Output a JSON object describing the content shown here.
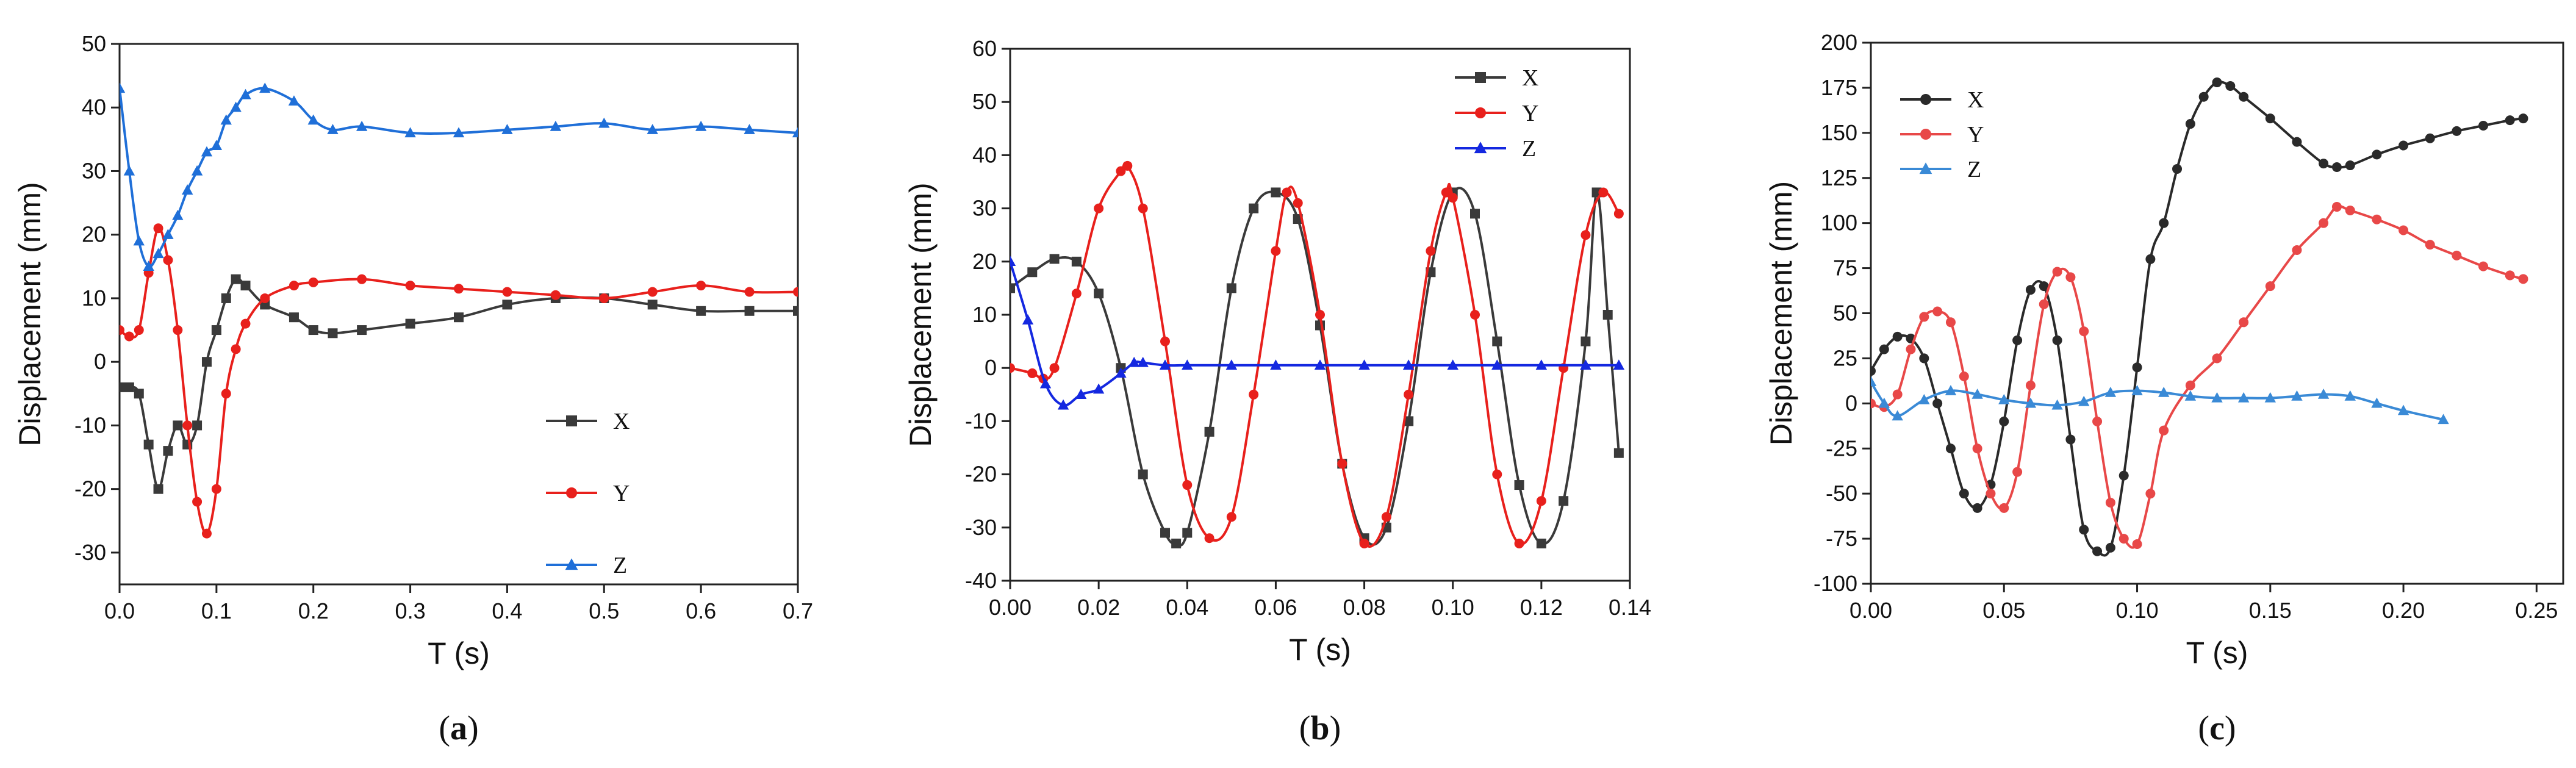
{
  "chart_data": [
    {
      "panel": "a",
      "type": "line",
      "caption": "(a)",
      "caption_letter": "a",
      "xlabel": "T (s)",
      "ylabel": "Displacement (mm)",
      "xlim": [
        0,
        0.7
      ],
      "ylim": [
        -35,
        50
      ],
      "xticks": [
        0.0,
        0.1,
        0.2,
        0.3,
        0.4,
        0.5,
        0.6,
        0.7
      ],
      "yticks": [
        -30,
        -20,
        -10,
        0,
        10,
        20,
        30,
        40,
        50
      ],
      "xtick_labels": [
        "0.0",
        "0.1",
        "0.2",
        "0.3",
        "0.4",
        "0.5",
        "0.6",
        "0.7"
      ],
      "ytick_labels": [
        "-30",
        "-20",
        "-10",
        "0",
        "10",
        "20",
        "30",
        "40",
        "50"
      ],
      "legend_position": "lower-right",
      "series": [
        {
          "name": "X",
          "color": "#3a3a3a",
          "marker": "square",
          "x": [
            0,
            0.01,
            0.02,
            0.03,
            0.04,
            0.05,
            0.06,
            0.07,
            0.08,
            0.09,
            0.1,
            0.11,
            0.12,
            0.13,
            0.15,
            0.18,
            0.2,
            0.22,
            0.25,
            0.3,
            0.35,
            0.4,
            0.45,
            0.5,
            0.55,
            0.6,
            0.65,
            0.7
          ],
          "y": [
            -4,
            -4,
            -5,
            -13,
            -20,
            -14,
            -10,
            -13,
            -10,
            0,
            5,
            10,
            13,
            12,
            9,
            7,
            5,
            4.5,
            5,
            6,
            7,
            9,
            10,
            10,
            9,
            8,
            8,
            8
          ]
        },
        {
          "name": "Y",
          "color": "#e8201c",
          "marker": "circle",
          "x": [
            0,
            0.01,
            0.02,
            0.03,
            0.04,
            0.05,
            0.06,
            0.07,
            0.08,
            0.09,
            0.1,
            0.11,
            0.12,
            0.13,
            0.15,
            0.18,
            0.2,
            0.25,
            0.3,
            0.35,
            0.4,
            0.45,
            0.5,
            0.55,
            0.6,
            0.65,
            0.7
          ],
          "y": [
            5,
            4,
            5,
            14,
            21,
            16,
            5,
            -10,
            -22,
            -27,
            -20,
            -5,
            2,
            6,
            10,
            12,
            12.5,
            13,
            12,
            11.5,
            11,
            10.5,
            10,
            11,
            12,
            11,
            11
          ]
        },
        {
          "name": "Z",
          "color": "#1f6fd8",
          "marker": "triangle",
          "x": [
            0,
            0.01,
            0.02,
            0.03,
            0.04,
            0.05,
            0.06,
            0.07,
            0.08,
            0.09,
            0.1,
            0.11,
            0.12,
            0.13,
            0.15,
            0.18,
            0.2,
            0.22,
            0.25,
            0.3,
            0.35,
            0.4,
            0.45,
            0.5,
            0.55,
            0.6,
            0.65,
            0.7
          ],
          "y": [
            43,
            30,
            19,
            15,
            17,
            20,
            23,
            27,
            30,
            33,
            34,
            38,
            40,
            42,
            43,
            41,
            38,
            36.5,
            37,
            36,
            36,
            36.5,
            37,
            37.5,
            36.5,
            37,
            36.5,
            36
          ]
        }
      ]
    },
    {
      "panel": "b",
      "type": "line",
      "caption": "(b)",
      "caption_letter": "b",
      "xlabel": "T (s)",
      "ylabel": "Displacement (mm)",
      "xlim": [
        0,
        0.14
      ],
      "ylim": [
        -40,
        60
      ],
      "xticks": [
        0.0,
        0.02,
        0.04,
        0.06,
        0.08,
        0.1,
        0.12,
        0.14
      ],
      "yticks": [
        -40,
        -30,
        -20,
        -10,
        0,
        10,
        20,
        30,
        40,
        50,
        60
      ],
      "xtick_labels": [
        "0.00",
        "0.02",
        "0.04",
        "0.06",
        "0.08",
        "0.10",
        "0.12",
        "0.14"
      ],
      "ytick_labels": [
        "-40",
        "-30",
        "-20",
        "-10",
        "0",
        "10",
        "20",
        "30",
        "40",
        "50",
        "60"
      ],
      "legend_position": "top-right",
      "series": [
        {
          "name": "X",
          "color": "#3a3a3a",
          "marker": "square",
          "x": [
            0,
            0.005,
            0.01,
            0.015,
            0.02,
            0.025,
            0.03,
            0.035,
            0.0375,
            0.04,
            0.045,
            0.05,
            0.055,
            0.06,
            0.065,
            0.07,
            0.075,
            0.08,
            0.085,
            0.09,
            0.095,
            0.1,
            0.105,
            0.11,
            0.115,
            0.12,
            0.125,
            0.13,
            0.1325,
            0.135,
            0.1375
          ],
          "y": [
            15,
            18,
            20.5,
            20,
            14,
            0,
            -20,
            -31,
            -33,
            -31,
            -12,
            15,
            30,
            33,
            28,
            8,
            -18,
            -32,
            -30,
            -10,
            18,
            33,
            29,
            5,
            -22,
            -33,
            -25,
            5,
            33,
            10,
            -16
          ]
        },
        {
          "name": "Y",
          "color": "#e8201c",
          "marker": "circle",
          "x": [
            0,
            0.005,
            0.0075,
            0.01,
            0.015,
            0.02,
            0.025,
            0.0265,
            0.03,
            0.035,
            0.04,
            0.045,
            0.05,
            0.055,
            0.06,
            0.0625,
            0.065,
            0.07,
            0.075,
            0.08,
            0.085,
            0.09,
            0.095,
            0.0985,
            0.1,
            0.105,
            0.11,
            0.115,
            0.12,
            0.125,
            0.13,
            0.134,
            0.1375
          ],
          "y": [
            0,
            -1,
            -2,
            0,
            14,
            30,
            37,
            38,
            30,
            5,
            -22,
            -32,
            -28,
            -5,
            22,
            33,
            31,
            10,
            -18,
            -33,
            -28,
            -5,
            22,
            33,
            32,
            10,
            -20,
            -33,
            -25,
            0,
            25,
            33,
            29
          ]
        },
        {
          "name": "Z",
          "color": "#1428e0",
          "marker": "triangle",
          "x": [
            0,
            0.004,
            0.008,
            0.012,
            0.016,
            0.02,
            0.025,
            0.028,
            0.03,
            0.035,
            0.04,
            0.05,
            0.06,
            0.07,
            0.08,
            0.09,
            0.1,
            0.11,
            0.12,
            0.13,
            0.1375
          ],
          "y": [
            20,
            9,
            -3,
            -7,
            -5,
            -4,
            -1,
            1,
            1,
            0.5,
            0.5,
            0.5,
            0.5,
            0.5,
            0.5,
            0.5,
            0.5,
            0.5,
            0.5,
            0.5,
            0.5
          ]
        }
      ]
    },
    {
      "panel": "c",
      "type": "line",
      "caption": "(c)",
      "caption_letter": "c",
      "xlabel": "T (s)",
      "ylabel": "Displacement (mm)",
      "xlim": [
        0,
        0.26
      ],
      "ylim": [
        -100,
        200
      ],
      "xticks": [
        0.0,
        0.05,
        0.1,
        0.15,
        0.2,
        0.25
      ],
      "yticks": [
        -100,
        -75,
        -50,
        -25,
        0,
        25,
        50,
        75,
        100,
        125,
        150,
        175,
        200
      ],
      "xtick_labels": [
        "0.00",
        "0.05",
        "0.10",
        "0.15",
        "0.20",
        "0.25"
      ],
      "ytick_labels": [
        "-100",
        "-75",
        "-50",
        "-25",
        "0",
        "25",
        "50",
        "75",
        "100",
        "125",
        "150",
        "175",
        "200"
      ],
      "legend_position": "top-left",
      "series": [
        {
          "name": "X",
          "color": "#2a2a2a",
          "marker": "circle",
          "x": [
            0,
            0.005,
            0.01,
            0.015,
            0.02,
            0.025,
            0.03,
            0.035,
            0.04,
            0.045,
            0.05,
            0.055,
            0.06,
            0.065,
            0.07,
            0.075,
            0.08,
            0.085,
            0.09,
            0.095,
            0.1,
            0.105,
            0.11,
            0.115,
            0.12,
            0.125,
            0.13,
            0.135,
            0.14,
            0.15,
            0.16,
            0.17,
            0.175,
            0.18,
            0.19,
            0.2,
            0.21,
            0.22,
            0.23,
            0.24,
            0.245
          ],
          "y": [
            18,
            30,
            37,
            36,
            25,
            0,
            -25,
            -50,
            -58,
            -45,
            -10,
            35,
            63,
            65,
            35,
            -20,
            -70,
            -82,
            -80,
            -40,
            20,
            80,
            100,
            130,
            155,
            170,
            178,
            176,
            170,
            158,
            145,
            133,
            131,
            132,
            138,
            143,
            147,
            151,
            154,
            157,
            158
          ]
        },
        {
          "name": "Y",
          "color": "#e84848",
          "marker": "circle",
          "x": [
            0,
            0.005,
            0.01,
            0.015,
            0.02,
            0.025,
            0.03,
            0.035,
            0.04,
            0.045,
            0.05,
            0.055,
            0.06,
            0.065,
            0.07,
            0.075,
            0.08,
            0.085,
            0.09,
            0.095,
            0.1,
            0.105,
            0.11,
            0.12,
            0.13,
            0.14,
            0.15,
            0.16,
            0.17,
            0.175,
            0.18,
            0.19,
            0.2,
            0.21,
            0.22,
            0.23,
            0.24,
            0.245
          ],
          "y": [
            0,
            -2,
            5,
            30,
            48,
            51,
            45,
            15,
            -25,
            -50,
            -58,
            -38,
            10,
            55,
            73,
            70,
            40,
            -10,
            -55,
            -75,
            -78,
            -50,
            -15,
            10,
            25,
            45,
            65,
            85,
            100,
            109,
            107,
            102,
            96,
            88,
            82,
            76,
            71,
            69
          ]
        },
        {
          "name": "Z",
          "color": "#3a8ad6",
          "marker": "triangle",
          "x": [
            0,
            0.005,
            0.01,
            0.02,
            0.03,
            0.04,
            0.05,
            0.06,
            0.07,
            0.08,
            0.09,
            0.1,
            0.11,
            0.12,
            0.13,
            0.14,
            0.15,
            0.16,
            0.17,
            0.18,
            0.19,
            0.2,
            0.215
          ],
          "y": [
            12,
            0,
            -7,
            2,
            7,
            5,
            2,
            0,
            -1,
            1,
            6,
            7,
            6,
            4,
            3,
            3,
            3,
            4,
            5,
            4,
            0,
            -4,
            -9
          ]
        }
      ]
    }
  ]
}
